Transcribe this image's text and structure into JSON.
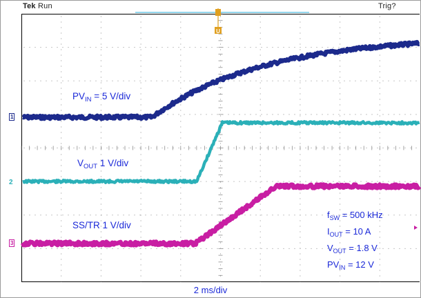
{
  "status": {
    "brand": "Tek",
    "run_state": "Run",
    "trigger_state": "Trig?"
  },
  "channels": [
    {
      "marker": "1",
      "label_main": "PV",
      "label_sub": "IN",
      "label_tail": " = 5 V/div",
      "color": "#1c2a8c"
    },
    {
      "marker": "2",
      "label_main": "V",
      "label_sub": "OUT",
      "label_tail": " 1 V/div",
      "color": "#2bb0b8"
    },
    {
      "marker": "3",
      "label_main": "SS/TR 1 V/div",
      "label_sub": "",
      "label_tail": "",
      "color": "#c81ea3"
    }
  ],
  "conditions": [
    {
      "name_main": "f",
      "name_sub": "SW",
      "value": " = 500 kHz"
    },
    {
      "name_main": "I",
      "name_sub": "OUT",
      "value": " = 10 A"
    },
    {
      "name_main": "V",
      "name_sub": "OUT",
      "value": " = 1.8 V"
    },
    {
      "name_main": "PV",
      "name_sub": "IN",
      "value": " = 12 V"
    }
  ],
  "timebase": "2 ms/div",
  "trigger_marker": "T",
  "colors": {
    "trigger_bar": "#8fd3ea",
    "trigger_marker": "#e0a020",
    "annotation_text": "#1a28d8",
    "grid": "#8c8c8c"
  },
  "waveforms": [
    {
      "channel": "1",
      "shape": "flat then curved rise after ramp start",
      "color": "#1c2a8c"
    },
    {
      "channel": "2",
      "shape": "flat, linear ramp, then flat",
      "color": "#2bb0b8"
    },
    {
      "channel": "3",
      "shape": "flat, linear ramp, then flat",
      "color": "#c81ea3"
    }
  ]
}
